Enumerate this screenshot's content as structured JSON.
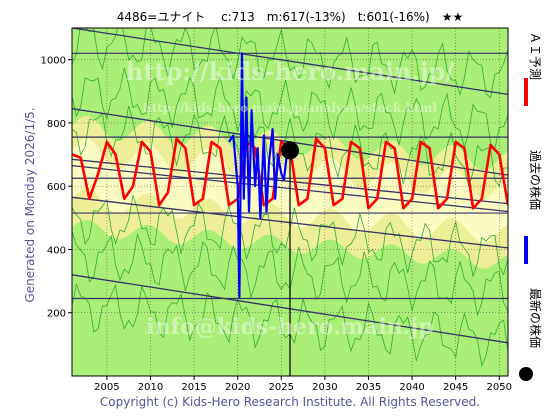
{
  "chart_data": {
    "type": "line",
    "title": "4486=ユナイト　 c:713　m:617(-13%)　t:601(-16%)　★★",
    "side_label": "Generated on Monday 2026/1/5.",
    "copyright": "Copyright (c) Kids-Hero Research Institute. All Rights Reserved.",
    "watermarks": [
      "http://kids-hero.main.jp/",
      "http://kids-hero.main.jp/analysis/stock.html",
      "info@kids-hero.main.jp"
    ],
    "xlim": [
      2001,
      2051
    ],
    "ylim": [
      0,
      1100
    ],
    "x_ticks": [
      2005,
      2010,
      2015,
      2020,
      2025,
      2030,
      2035,
      2040,
      2045,
      2050
    ],
    "y_ticks": [
      200,
      400,
      600,
      800,
      1000
    ],
    "grid": true,
    "legend_placement": "right-vertical",
    "legend": [
      {
        "label": "ＡＩ予測",
        "color": "#ff0000",
        "marker": "line"
      },
      {
        "label": "過去の株価",
        "color": "#0000ff",
        "marker": "line"
      },
      {
        "label": "最新の株価",
        "color": "#000000",
        "marker": "dot"
      }
    ],
    "colors": {
      "band_outer": "#aaee77",
      "band_inner": "#eeee99",
      "band_core": "#ffffcc",
      "band_lines": "#33aa33",
      "trend_lines": "#333366",
      "prediction": "#ff0000",
      "past_price": "#0000ff",
      "latest_price": "#000000",
      "grid": "#444444"
    },
    "hlines": [
      245,
      515,
      625,
      755,
      1020
    ],
    "trend_lines": [
      {
        "x": [
          2001,
          2051
        ],
        "y": [
          1100,
          890
        ]
      },
      {
        "x": [
          2001,
          2051
        ],
        "y": [
          845,
          635
        ]
      },
      {
        "x": [
          2001,
          2051
        ],
        "y": [
          685,
          545
        ]
      },
      {
        "x": [
          2001,
          2051
        ],
        "y": [
          665,
          520
        ]
      },
      {
        "x": [
          2001,
          2051
        ],
        "y": [
          565,
          405
        ]
      },
      {
        "x": [
          2001,
          2051
        ],
        "y": [
          320,
          105
        ]
      }
    ],
    "series": [
      {
        "name": "ＡＩ予測",
        "color": "#ff0000",
        "x": [
          2001,
          2002,
          2003,
          2004,
          2005,
          2006,
          2007,
          2008,
          2009,
          2010,
          2011,
          2012,
          2013,
          2014,
          2015,
          2016,
          2017,
          2018,
          2019,
          2020,
          2021,
          2022,
          2023,
          2024,
          2025,
          2026,
          2027,
          2028,
          2029,
          2030,
          2031,
          2032,
          2033,
          2034,
          2035,
          2036,
          2037,
          2038,
          2039,
          2040,
          2041,
          2042,
          2043,
          2044,
          2045,
          2046,
          2047,
          2048,
          2049,
          2050,
          2051
        ],
        "y": [
          700,
          690,
          560,
          640,
          740,
          700,
          560,
          600,
          740,
          710,
          540,
          580,
          750,
          720,
          540,
          560,
          740,
          720,
          540,
          560,
          740,
          720,
          540,
          560,
          740,
          720,
          540,
          560,
          750,
          720,
          540,
          560,
          740,
          720,
          530,
          560,
          740,
          720,
          530,
          560,
          740,
          720,
          530,
          560,
          740,
          720,
          530,
          560,
          730,
          700,
          540
        ]
      },
      {
        "name": "過去の株価",
        "color": "#0000ff",
        "x": [
          2019.0,
          2019.5,
          2020.0,
          2020.2,
          2020.5,
          2020.7,
          2021.0,
          2021.3,
          2021.6,
          2022.0,
          2022.3,
          2022.6,
          2023.0,
          2023.3,
          2023.6,
          2024.0,
          2024.3,
          2024.6,
          2025.0,
          2025.3,
          2025.6,
          2026.0
        ],
        "y": [
          740,
          760,
          600,
          250,
          1020,
          560,
          880,
          520,
          840,
          600,
          720,
          500,
          760,
          520,
          680,
          780,
          560,
          700,
          640,
          620,
          690,
          713
        ]
      }
    ],
    "latest_point": {
      "x": 2026.0,
      "y": 713,
      "label": "最新の株価"
    }
  }
}
